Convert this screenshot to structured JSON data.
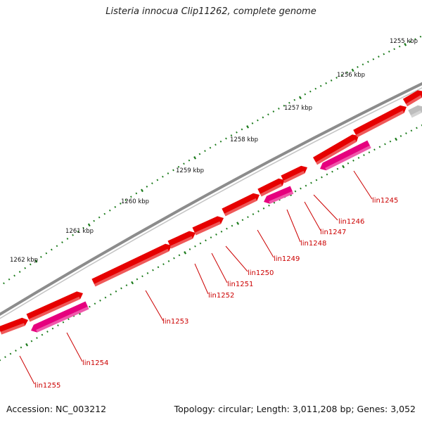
{
  "title": "Listeria innocua Clip11262, complete genome",
  "footer": {
    "accession": "Accession: NC_003212",
    "summary": "Topology: circular; Length: 3,011,208 bp; Genes: 3,052"
  },
  "colors": {
    "forward_gene": "#e60000",
    "reverse_gene": "#e6007e",
    "other_gene": "#bdbdbd",
    "backbone": "#8c8c8c",
    "tick": "#1a7a1a",
    "label": "#cc0000"
  },
  "scale_labels": [
    "1255 kbp",
    "1256 kbp",
    "1257 kbp",
    "1258 kbp",
    "1259 kbp",
    "1260 kbp",
    "1261 kbp",
    "1262 kbp"
  ],
  "gene_labels": [
    "lin1245",
    "lin1246",
    "lin1247",
    "lin1248",
    "lin1249",
    "lin1250",
    "lin1251",
    "lin1252",
    "lin1253",
    "lin1254",
    "lin1255"
  ]
}
